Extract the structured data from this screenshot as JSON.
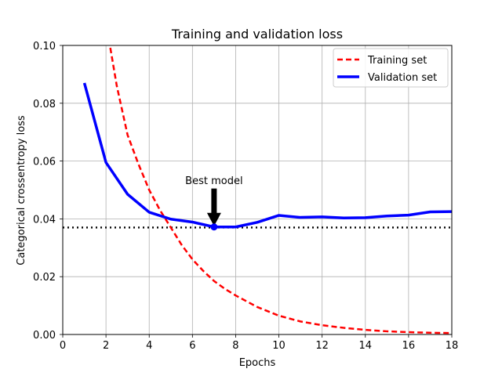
{
  "chart_data": {
    "type": "line",
    "title": "Training and validation loss",
    "xlabel": "Epochs",
    "ylabel": "Categorical crossentropy loss",
    "xlim": [
      0,
      18
    ],
    "ylim": [
      0,
      0.1
    ],
    "xticks": [
      0,
      2,
      4,
      6,
      8,
      10,
      12,
      14,
      16,
      18
    ],
    "yticks": [
      0.0,
      0.02,
      0.04,
      0.06,
      0.08,
      0.1
    ],
    "xtick_labels": [
      "0",
      "2",
      "4",
      "6",
      "8",
      "10",
      "12",
      "14",
      "16",
      "18"
    ],
    "ytick_labels": [
      "0.00",
      "0.02",
      "0.04",
      "0.06",
      "0.08",
      "0.10"
    ],
    "grid": true,
    "legend_position": "top-right",
    "series": [
      {
        "name": "Training set",
        "color": "#ff0000",
        "style": "dashed",
        "x": [
          2,
          2.5,
          3,
          3.5,
          4,
          4.5,
          5,
          5.5,
          6,
          6.5,
          7,
          7.5,
          8,
          8.5,
          9,
          10,
          11,
          12,
          13,
          14,
          15,
          16,
          17,
          18
        ],
        "values": [
          0.108,
          0.086,
          0.069,
          0.059,
          0.05,
          0.043,
          0.037,
          0.031,
          0.026,
          0.022,
          0.0185,
          0.0158,
          0.0135,
          0.0115,
          0.0095,
          0.0065,
          0.0045,
          0.0032,
          0.0023,
          0.0016,
          0.0011,
          0.0008,
          0.0006,
          0.0005
        ]
      },
      {
        "name": "Validation set",
        "color": "#0000ff",
        "style": "solid",
        "x": [
          1,
          2,
          3,
          4,
          5,
          6,
          7,
          8,
          9,
          10,
          11,
          12,
          13,
          14,
          15,
          16,
          17,
          18
        ],
        "values": [
          0.087,
          0.0595,
          0.0485,
          0.0423,
          0.0399,
          0.0389,
          0.0372,
          0.0372,
          0.0388,
          0.0412,
          0.0405,
          0.0407,
          0.0403,
          0.0404,
          0.041,
          0.0413,
          0.0424,
          0.0425
        ]
      }
    ],
    "hline": {
      "y": 0.037,
      "color": "#000000",
      "style": "dotted"
    },
    "best_point": {
      "x": 7,
      "y": 0.0372,
      "color": "#0000ff"
    },
    "annotation": {
      "text": "Best model",
      "arrow_from": [
        7,
        0.0505
      ],
      "arrow_to": [
        7,
        0.0372
      ],
      "text_at": [
        7,
        0.052
      ]
    }
  }
}
